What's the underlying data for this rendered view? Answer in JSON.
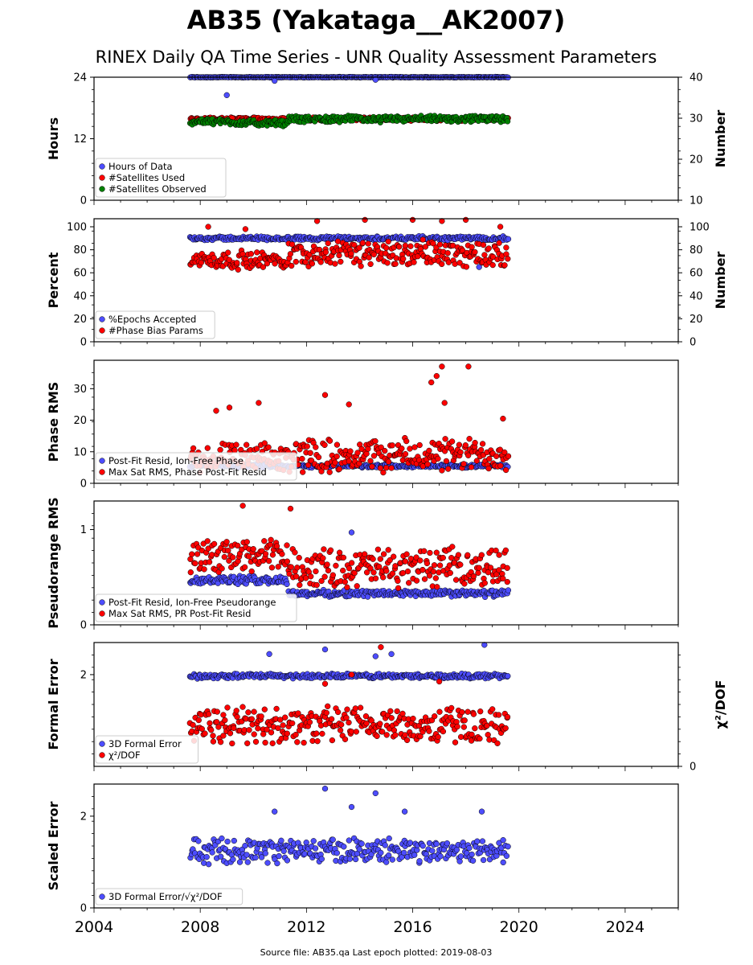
{
  "title": "AB35 (Yakataga__AK2007)",
  "subtitle": "RINEX Daily QA Time Series - UNR Quality Assessment Parameters",
  "footer": "Source file: AB35.qa Last epoch plotted: 2019-08-03",
  "colors": {
    "blue": "#4d4dff",
    "red": "#ff0000",
    "green": "#008000"
  },
  "chart_data": {
    "type": "scatter",
    "x_range": [
      2004,
      2026
    ],
    "x_ticks": [
      "2004",
      "2008",
      "2012",
      "2016",
      "2020",
      "2024"
    ],
    "data_span": [
      "2007-07",
      "2019-08-03"
    ],
    "panels": [
      {
        "id": "hours",
        "ylabel": "Hours",
        "ylim": [
          0,
          24
        ],
        "yticks": [
          "0",
          "12",
          "24"
        ],
        "right_axis": {
          "label": "Number",
          "ylim": [
            10,
            40
          ],
          "ticks": [
            "10",
            "20",
            "30",
            "40"
          ]
        },
        "legend": [
          "Hours of Data",
          "#Satellites Used",
          "#Satellites Observed"
        ],
        "series": [
          {
            "name": "Hours of Data",
            "axis": "left",
            "color": "blue",
            "segments": [
              {
                "from": 2007.6,
                "to": 2019.6,
                "base": 24,
                "spread": 0.08
              }
            ],
            "outliers": [
              [
                2009.0,
                20.5
              ],
              [
                2010.8,
                23.3
              ],
              [
                2014.6,
                23.5
              ]
            ]
          },
          {
            "name": "#Satellites Used",
            "axis": "right",
            "color": "red",
            "segments": [
              {
                "from": 2007.6,
                "to": 2019.6,
                "base": 29.8,
                "spread": 0.5
              }
            ],
            "outliers": [
              [
                2009.2,
                30.0
              ]
            ]
          },
          {
            "name": "#Satellites Observed",
            "axis": "right",
            "color": "green",
            "segments": [
              {
                "from": 2007.6,
                "to": 2009.3,
                "base": 29.2,
                "spread": 0.9
              },
              {
                "from": 2009.3,
                "to": 2011.3,
                "base": 28.8,
                "spread": 0.9
              },
              {
                "from": 2011.3,
                "to": 2019.6,
                "base": 29.8,
                "spread": 0.9
              }
            ],
            "outliers": []
          }
        ]
      },
      {
        "id": "percent",
        "ylabel": "Percent",
        "ylim": [
          0,
          107
        ],
        "yticks": [
          "0",
          "20",
          "40",
          "60",
          "80",
          "100"
        ],
        "right_axis": {
          "label": "Number",
          "ylim": [
            0,
            107
          ],
          "ticks": [
            "0",
            "20",
            "40",
            "60",
            "80",
            "100"
          ]
        },
        "legend": [
          "%Epochs Accepted",
          "#Phase Bias Params"
        ],
        "series": [
          {
            "name": "%Epochs Accepted",
            "axis": "left",
            "color": "blue",
            "segments": [
              {
                "from": 2007.6,
                "to": 2019.6,
                "base": 90,
                "spread": 2
              }
            ],
            "outliers": [
              [
                2018.5,
                65
              ]
            ]
          },
          {
            "name": "#Phase Bias Params",
            "axis": "right",
            "color": "red",
            "segments": [
              {
                "from": 2007.6,
                "to": 2011.3,
                "base": 71,
                "spread": 9
              },
              {
                "from": 2011.3,
                "to": 2019.6,
                "base": 77,
                "spread": 13
              }
            ],
            "outliers": [
              [
                2008.3,
                100
              ],
              [
                2009.7,
                98
              ],
              [
                2012.4,
                105
              ],
              [
                2014.2,
                106
              ],
              [
                2016.0,
                106
              ],
              [
                2017.1,
                105
              ],
              [
                2018.0,
                106
              ],
              [
                2019.3,
                100
              ]
            ]
          }
        ]
      },
      {
        "id": "phase",
        "ylabel": "Phase RMS",
        "ylim": [
          0,
          39
        ],
        "yticks": [
          "0",
          "10",
          "20",
          "30"
        ],
        "legend": [
          "Post-Fit Resid, Ion-Free Phase",
          "Max Sat RMS, Phase Post-Fit Resid"
        ],
        "series": [
          {
            "name": "Post-Fit Resid, Ion-Free Phase",
            "axis": "left",
            "color": "blue",
            "segments": [
              {
                "from": 2007.6,
                "to": 2019.6,
                "base": 5.5,
                "spread": 0.6
              }
            ],
            "outliers": []
          },
          {
            "name": "Max Sat RMS, Phase Post-Fit Resid",
            "axis": "left",
            "color": "red",
            "segments": [
              {
                "from": 2007.6,
                "to": 2011.3,
                "base": 8,
                "spread": 5
              },
              {
                "from": 2011.3,
                "to": 2019.6,
                "base": 9,
                "spread": 6
              }
            ],
            "outliers": [
              [
                2008.6,
                23
              ],
              [
                2009.1,
                24
              ],
              [
                2010.2,
                25.5
              ],
              [
                2012.7,
                28
              ],
              [
                2013.6,
                25
              ],
              [
                2016.7,
                32
              ],
              [
                2016.9,
                34
              ],
              [
                2017.1,
                37
              ],
              [
                2017.2,
                25.5
              ],
              [
                2018.1,
                37
              ],
              [
                2019.4,
                20.5
              ]
            ]
          }
        ]
      },
      {
        "id": "pseudorange",
        "ylabel": "Pseudorange RMS",
        "ylim": [
          0,
          1.3
        ],
        "yticks": [
          "0",
          "1"
        ],
        "legend": [
          "Post-Fit Resid, Ion-Free Pseudorange",
          "Max Sat RMS, PR Post-Fit Resid"
        ],
        "series": [
          {
            "name": "Post-Fit Resid, Ion-Free Pseudorange",
            "axis": "left",
            "color": "blue",
            "segments": [
              {
                "from": 2007.6,
                "to": 2011.3,
                "base": 0.47,
                "spread": 0.05
              },
              {
                "from": 2011.3,
                "to": 2019.6,
                "base": 0.33,
                "spread": 0.04
              }
            ],
            "outliers": [
              [
                2013.7,
                0.97
              ]
            ]
          },
          {
            "name": "Max Sat RMS, PR Post-Fit Resid",
            "axis": "left",
            "color": "red",
            "segments": [
              {
                "from": 2007.6,
                "to": 2011.3,
                "base": 0.72,
                "spread": 0.2
              },
              {
                "from": 2011.3,
                "to": 2019.6,
                "base": 0.6,
                "spread": 0.23
              }
            ],
            "outliers": [
              [
                2009.6,
                1.25
              ],
              [
                2011.4,
                1.22
              ]
            ]
          }
        ]
      },
      {
        "id": "formal",
        "ylabel": "Formal Error",
        "ylim": [
          0,
          2.7
        ],
        "yticks": [
          "2"
        ],
        "right_axis": {
          "label": "χ²/DOF",
          "ylim": [
            0,
            2.7
          ],
          "ticks": [
            "0"
          ]
        },
        "legend": [
          "3D Formal Error",
          "χ²/DOF"
        ],
        "series": [
          {
            "name": "3D Formal Error",
            "axis": "left",
            "color": "blue",
            "segments": [
              {
                "from": 2007.6,
                "to": 2019.6,
                "base": 1.97,
                "spread": 0.06
              }
            ],
            "outliers": [
              [
                2010.6,
                2.45
              ],
              [
                2012.7,
                2.55
              ],
              [
                2014.6,
                2.4
              ],
              [
                2015.2,
                2.45
              ],
              [
                2018.7,
                2.65
              ]
            ]
          },
          {
            "name": "χ²/DOF",
            "axis": "right",
            "color": "red",
            "segments": [
              {
                "from": 2007.6,
                "to": 2019.6,
                "base": 0.9,
                "spread": 0.45
              }
            ],
            "outliers": [
              [
                2014.8,
                2.6
              ],
              [
                2012.7,
                1.8
              ],
              [
                2013.7,
                2.0
              ],
              [
                2017.0,
                1.85
              ]
            ]
          }
        ]
      },
      {
        "id": "scaled",
        "ylabel": "Scaled Error",
        "ylim": [
          0,
          2.7
        ],
        "yticks": [
          "0",
          "2"
        ],
        "legend": [
          "3D Formal Error/√χ²/DOF"
        ],
        "series": [
          {
            "name": "3D Formal Error/√χ²/DOF",
            "axis": "left",
            "color": "blue",
            "segments": [
              {
                "from": 2007.6,
                "to": 2019.6,
                "base": 1.25,
                "spread": 0.3
              }
            ],
            "outliers": [
              [
                2010.8,
                2.1
              ],
              [
                2012.7,
                2.6
              ],
              [
                2013.7,
                2.2
              ],
              [
                2014.6,
                2.5
              ],
              [
                2015.7,
                2.1
              ],
              [
                2018.6,
                2.1
              ]
            ]
          }
        ]
      }
    ]
  }
}
